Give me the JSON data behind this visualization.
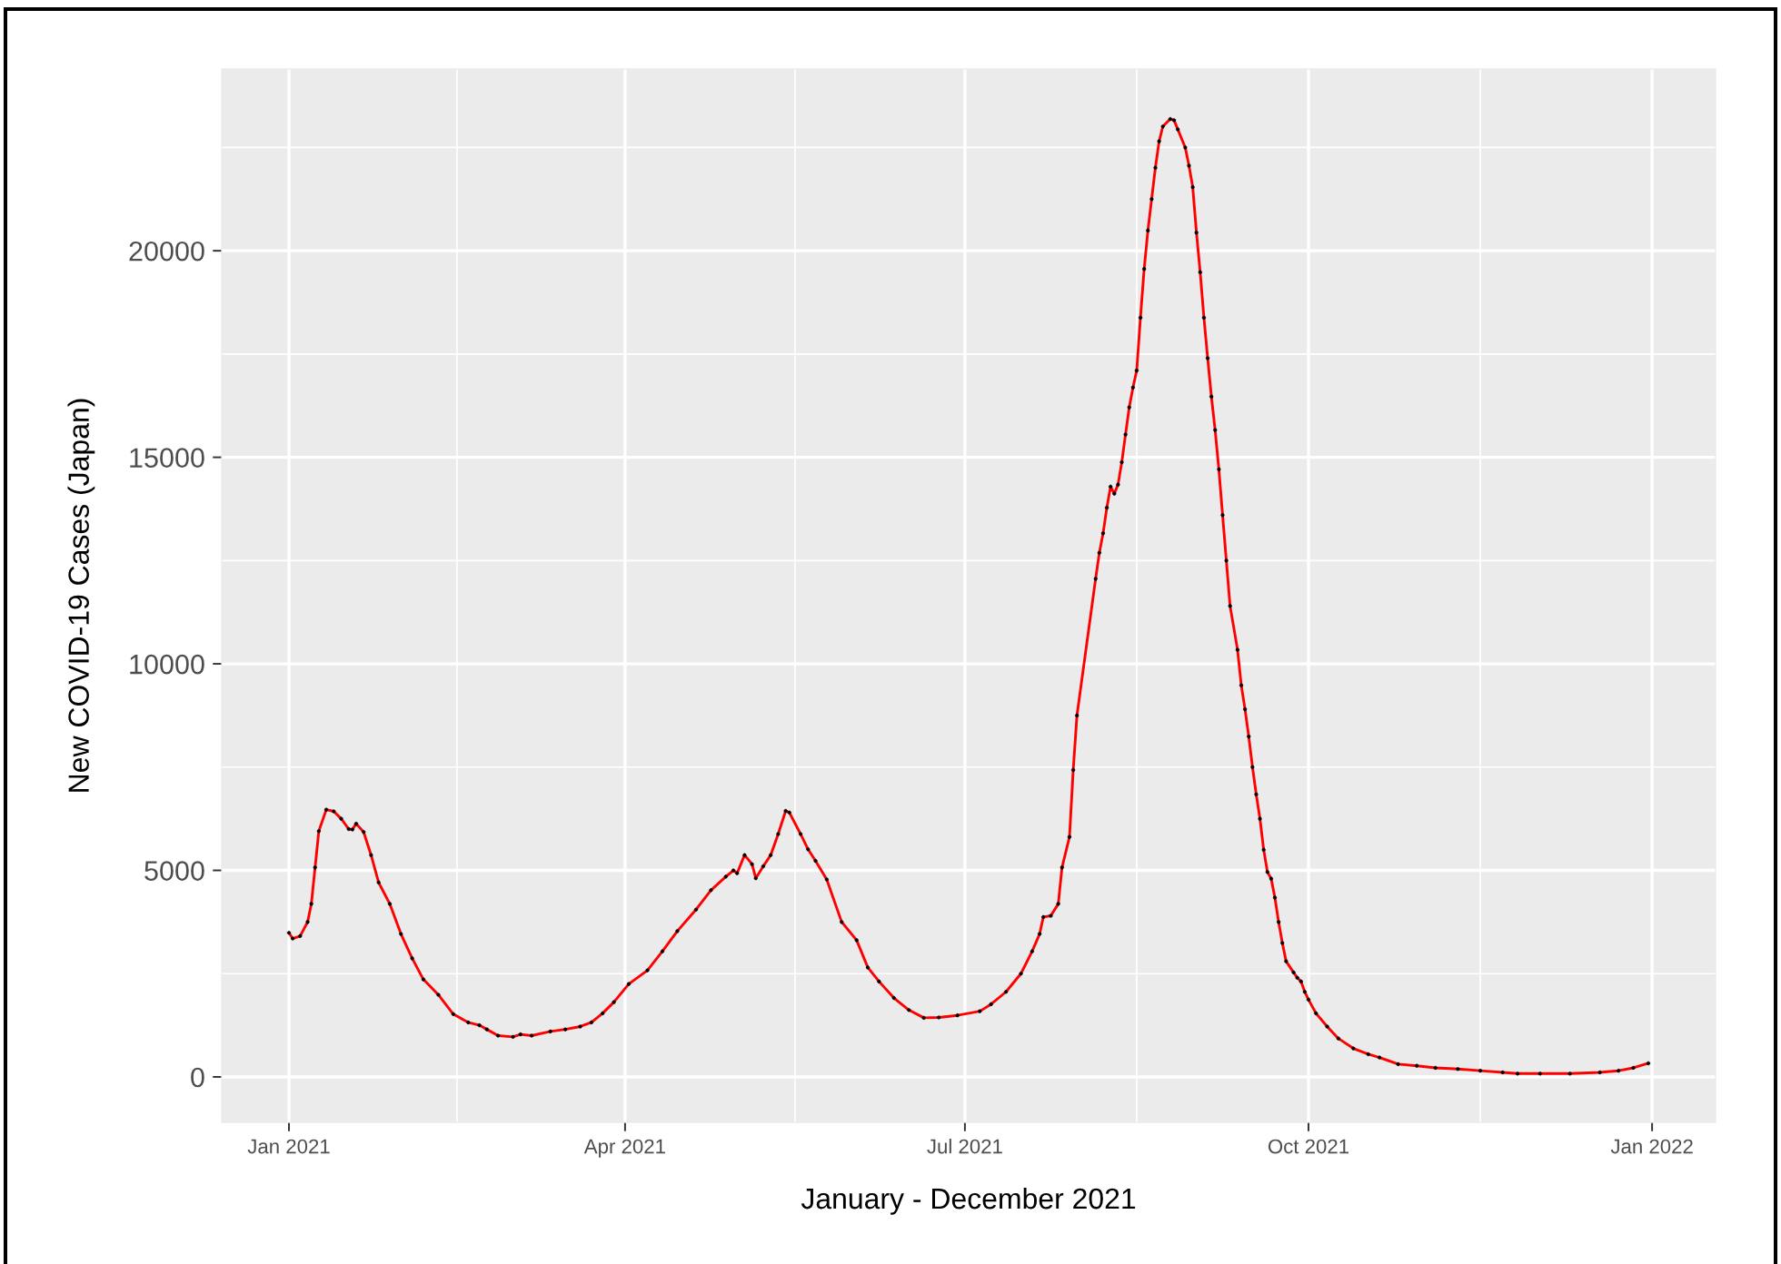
{
  "chart_data": {
    "type": "line",
    "xlabel": "January - December 2021",
    "ylabel": "New COVID-19 Cases (Japan)",
    "x": [
      "2021-01-01",
      "2021-01-02",
      "2021-01-04",
      "2021-01-06",
      "2021-01-07",
      "2021-01-08",
      "2021-01-09",
      "2021-01-11",
      "2021-01-13",
      "2021-01-15",
      "2021-01-17",
      "2021-01-18",
      "2021-01-19",
      "2021-01-21",
      "2021-01-23",
      "2021-01-25",
      "2021-01-28",
      "2021-01-31",
      "2021-02-03",
      "2021-02-06",
      "2021-02-10",
      "2021-02-14",
      "2021-02-18",
      "2021-02-21",
      "2021-02-23",
      "2021-02-26",
      "2021-03-02",
      "2021-03-04",
      "2021-03-07",
      "2021-03-12",
      "2021-03-16",
      "2021-03-20",
      "2021-03-23",
      "2021-03-26",
      "2021-03-29",
      "2021-04-02",
      "2021-04-07",
      "2021-04-11",
      "2021-04-15",
      "2021-04-20",
      "2021-04-24",
      "2021-04-28",
      "2021-04-30",
      "2021-05-01",
      "2021-05-03",
      "2021-05-05",
      "2021-05-06",
      "2021-05-08",
      "2021-05-10",
      "2021-05-12",
      "2021-05-14",
      "2021-05-15",
      "2021-05-18",
      "2021-05-20",
      "2021-05-22",
      "2021-05-25",
      "2021-05-29",
      "2021-06-02",
      "2021-06-05",
      "2021-06-08",
      "2021-06-12",
      "2021-06-16",
      "2021-06-20",
      "2021-06-24",
      "2021-06-29",
      "2021-07-05",
      "2021-07-08",
      "2021-07-12",
      "2021-07-16",
      "2021-07-19",
      "2021-07-21",
      "2021-07-22",
      "2021-07-24",
      "2021-07-26",
      "2021-07-27",
      "2021-07-29",
      "2021-07-30",
      "2021-07-31",
      "2021-08-05",
      "2021-08-06",
      "2021-08-07",
      "2021-08-08",
      "2021-08-09",
      "2021-08-10",
      "2021-08-11",
      "2021-08-12",
      "2021-08-13",
      "2021-08-14",
      "2021-08-15",
      "2021-08-16",
      "2021-08-17",
      "2021-08-18",
      "2021-08-19",
      "2021-08-20",
      "2021-08-21",
      "2021-08-22",
      "2021-08-23",
      "2021-08-25",
      "2021-08-26",
      "2021-08-27",
      "2021-08-29",
      "2021-08-30",
      "2021-08-31",
      "2021-09-01",
      "2021-09-02",
      "2021-09-03",
      "2021-09-04",
      "2021-09-05",
      "2021-09-06",
      "2021-09-07",
      "2021-09-08",
      "2021-09-09",
      "2021-09-10",
      "2021-09-12",
      "2021-09-13",
      "2021-09-14",
      "2021-09-15",
      "2021-09-16",
      "2021-09-17",
      "2021-09-18",
      "2021-09-19",
      "2021-09-20",
      "2021-09-21",
      "2021-09-22",
      "2021-09-23",
      "2021-09-24",
      "2021-09-25",
      "2021-09-27",
      "2021-09-28",
      "2021-09-29",
      "2021-09-30",
      "2021-10-01",
      "2021-10-03",
      "2021-10-06",
      "2021-10-09",
      "2021-10-13",
      "2021-10-17",
      "2021-10-20",
      "2021-10-25",
      "2021-10-30",
      "2021-11-04",
      "2021-11-10",
      "2021-11-16",
      "2021-11-22",
      "2021-11-26",
      "2021-12-02",
      "2021-12-10",
      "2021-12-18",
      "2021-12-23",
      "2021-12-27",
      "2021-12-31"
    ],
    "series": [
      {
        "color": "#ff0000",
        "values": [
          3490,
          3350,
          3410,
          3750,
          4190,
          5070,
          5950,
          6470,
          6430,
          6250,
          6000,
          5990,
          6130,
          5930,
          5370,
          4710,
          4190,
          3460,
          2870,
          2360,
          1990,
          1520,
          1320,
          1250,
          1150,
          1000,
          970,
          1030,
          1000,
          1100,
          1150,
          1220,
          1320,
          1540,
          1810,
          2250,
          2580,
          3040,
          3530,
          4050,
          4520,
          4850,
          5000,
          4930,
          5370,
          5150,
          4810,
          5100,
          5370,
          5880,
          6440,
          6400,
          5880,
          5510,
          5230,
          4780,
          3750,
          3310,
          2650,
          2310,
          1910,
          1620,
          1430,
          1440,
          1490,
          1590,
          1760,
          2060,
          2500,
          3040,
          3460,
          3870,
          3900,
          4190,
          5070,
          5810,
          7430,
          8750,
          12060,
          12690,
          13160,
          13780,
          14290,
          14120,
          14340,
          14880,
          15550,
          16210,
          16690,
          17100,
          18380,
          19560,
          20490,
          21250,
          22010,
          22650,
          23010,
          23190,
          23160,
          22940,
          22500,
          22060,
          21540,
          20440,
          19480,
          18380,
          17400,
          16470,
          15660,
          14710,
          13600,
          12500,
          11400,
          10340,
          9480,
          8900,
          8240,
          7500,
          6840,
          6250,
          5500,
          4960,
          4800,
          4340,
          3750,
          3240,
          2800,
          2530,
          2400,
          2310,
          2060,
          1870,
          1540,
          1220,
          930,
          690,
          550,
          470,
          310,
          270,
          220,
          190,
          150,
          110,
          80,
          80,
          80,
          110,
          150,
          220,
          330
        ]
      }
    ],
    "xlim": [
      "2020-12-14",
      "2022-01-18"
    ],
    "xticks": [
      {
        "value": "2021-01-01",
        "label": "Jan 2021"
      },
      {
        "value": "2021-04-01",
        "label": "Apr 2021"
      },
      {
        "value": "2021-07-01",
        "label": "Jul 2021"
      },
      {
        "value": "2021-10-01",
        "label": "Oct 2021"
      },
      {
        "value": "2022-01-01",
        "label": "Jan 2022"
      }
    ],
    "ylim": [
      -1100,
      24400
    ],
    "yticks": [
      0,
      5000,
      10000,
      15000,
      20000
    ],
    "grid": true,
    "marker": "circle",
    "line_style": "solid"
  }
}
